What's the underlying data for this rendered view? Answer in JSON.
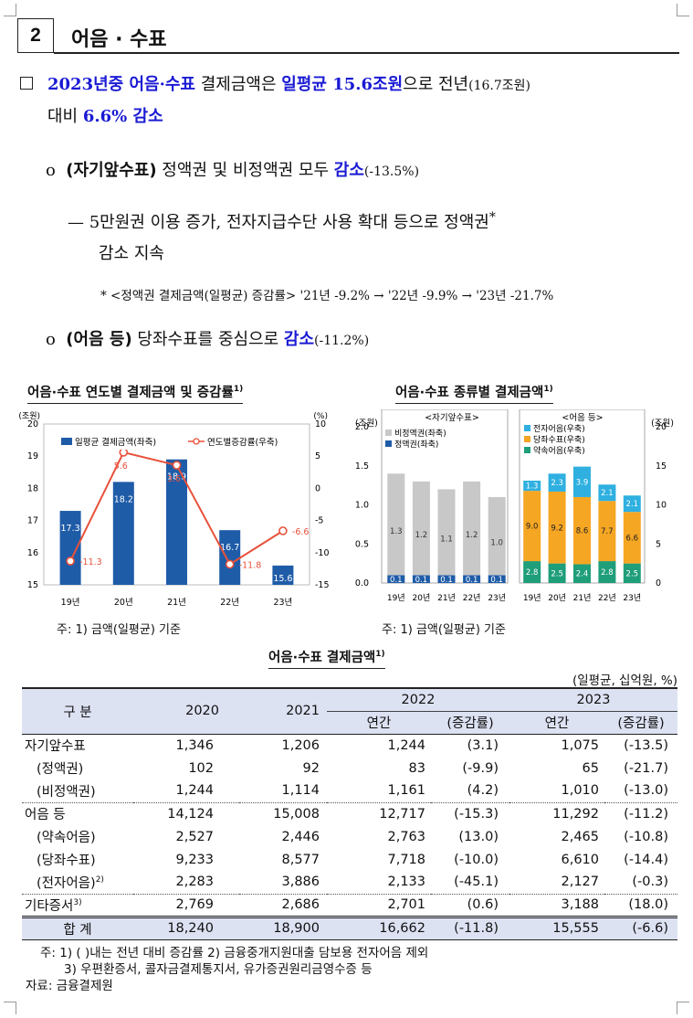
{
  "section": {
    "number": "2",
    "title": "어음 · 수표"
  },
  "para1": {
    "a": "2023년중 어음·수표",
    "b": " 결제금액은 ",
    "c": "일평균 15.6조원",
    "d": "으로 전년",
    "e": "(16.7조원)",
    "f": "대비 ",
    "g": "6.6% 감소"
  },
  "bullet1": {
    "marker": "o",
    "label": "(자기앞수표)",
    "text": " 정액권 및 비정액권 모두 ",
    "emph": "감소",
    "pct": "(-13.5%)"
  },
  "dash1": {
    "marker": "—",
    "line1": "5만원권 이용 증가, 전자지급수단 사용 확대 등으로 정액권",
    "star": "*",
    "line2": "감소 지속"
  },
  "footnote_star": {
    "text": "* <정액권 결제금액(일평균) 증감률> '21년 -9.2% → '22년 -9.9% → '23년 -21.7%"
  },
  "bullet2": {
    "marker": "o",
    "label": "(어음 등)",
    "text": " 당좌수표를 중심으로 ",
    "emph": "감소",
    "pct": "(-11.2%)"
  },
  "chart1": {
    "title": "어음·수표 연도별 결제금액 및 증감률",
    "sup": "1)",
    "note": "주: 1) 금액(일평균) 기준"
  },
  "chart2": {
    "title": "어음·수표 종류별 결제금액",
    "sup": "1)",
    "note": "주: 1) 금액(일평균) 기준"
  },
  "chart_data": [
    {
      "type": "bar",
      "categories": [
        "19년",
        "20년",
        "21년",
        "22년",
        "23년"
      ],
      "series": [
        {
          "name": "일평균 결제금액(좌축)",
          "values": [
            17.3,
            18.2,
            18.9,
            16.7,
            15.6
          ],
          "color": "#1f5ca8"
        },
        {
          "name": "연도별증감률(우축)",
          "type": "line",
          "values": [
            -11.3,
            5.6,
            3.6,
            -11.8,
            -6.6
          ],
          "color": "#e8503a"
        }
      ],
      "ylabel_left": "(조원)",
      "ylabel_right": "(%)",
      "ylim_left": [
        15,
        20
      ],
      "ylim_right": [
        -15,
        10
      ],
      "yticks_left": [
        "15",
        "16",
        "17",
        "18",
        "19",
        "20"
      ],
      "yticks_right": [
        "-15",
        "-10",
        "-5",
        "0",
        "5",
        "10"
      ],
      "legend": "top"
    },
    {
      "type": "bar",
      "subtitle": "<자기앞수표>",
      "categories": [
        "19년",
        "20년",
        "21년",
        "22년",
        "23년"
      ],
      "series": [
        {
          "name": "정액권(좌축)",
          "values": [
            0.1,
            0.1,
            0.1,
            0.1,
            0.1
          ],
          "color": "#1f5ca8"
        },
        {
          "name": "비정액권(좌축)",
          "values": [
            1.3,
            1.2,
            1.1,
            1.2,
            1.0
          ],
          "color": "#c8c8c8"
        }
      ],
      "ylabel": "(조원)",
      "ylim": [
        0,
        2.0
      ],
      "yticks": [
        "0.0",
        "0.5",
        "1.0",
        "1.5",
        "2.0"
      ],
      "stacked": true
    },
    {
      "type": "bar",
      "subtitle": "<어음 등>",
      "categories": [
        "19년",
        "20년",
        "21년",
        "22년",
        "23년"
      ],
      "series": [
        {
          "name": "약속어음(우축)",
          "values": [
            2.8,
            2.5,
            2.4,
            2.8,
            2.5
          ],
          "color": "#1f9e7a"
        },
        {
          "name": "당좌수표(우축)",
          "values": [
            9.0,
            9.2,
            8.6,
            7.7,
            6.6
          ],
          "color": "#f5a623"
        },
        {
          "name": "전자어음(우축)",
          "values": [
            1.3,
            2.3,
            3.9,
            2.1,
            2.1
          ],
          "color": "#2fb0e0"
        }
      ],
      "ylabel": "(조원)",
      "ylim": [
        0,
        20
      ],
      "yticks": [
        "0",
        "5",
        "10",
        "15",
        "20"
      ],
      "stacked": true
    },
    {
      "type": "table",
      "title": "어음·수표 결제금액",
      "title_sup": "1)",
      "unit": "(일평균, 십억원, %)",
      "header": {
        "col0": "구 분",
        "y2020": "2020",
        "y2021": "2021",
        "y2022": "2022",
        "y2023": "2023",
        "amt": "연간",
        "chg": "(증감률)"
      },
      "rows": [
        {
          "label": "자기앞수표",
          "v2020": "1,346",
          "v2021": "1,206",
          "v2022": "1,244",
          "c2022": "(3.1)",
          "v2023": "1,075",
          "c2023": "(-13.5)"
        },
        {
          "label": "(정액권)",
          "v2020": "102",
          "v2021": "92",
          "v2022": "83",
          "c2022": "(-9.9)",
          "v2023": "65",
          "c2023": "(-21.7)"
        },
        {
          "label": "(비정액권)",
          "v2020": "1,244",
          "v2021": "1,114",
          "v2022": "1,161",
          "c2022": "(4.2)",
          "v2023": "1,010",
          "c2023": "(-13.0)"
        },
        {
          "label": "어음 등",
          "v2020": "14,124",
          "v2021": "15,008",
          "v2022": "12,717",
          "c2022": "(-15.3)",
          "v2023": "11,292",
          "c2023": "(-11.2)"
        },
        {
          "label": "(약속어음)",
          "v2020": "2,527",
          "v2021": "2,446",
          "v2022": "2,763",
          "c2022": "(13.0)",
          "v2023": "2,465",
          "c2023": "(-10.8)"
        },
        {
          "label": "(당좌수표)",
          "v2020": "9,233",
          "v2021": "8,577",
          "v2022": "7,718",
          "c2022": "(-10.0)",
          "v2023": "6,610",
          "c2023": "(-14.4)"
        },
        {
          "label": "(전자어음)",
          "sup": "2)",
          "v2020": "2,283",
          "v2021": "3,886",
          "v2022": "2,133",
          "c2022": "(-45.1)",
          "v2023": "2,127",
          "c2023": "(-0.3)"
        },
        {
          "label": "기타증서",
          "sup": "3)",
          "v2020": "2,769",
          "v2021": "2,686",
          "v2022": "2,701",
          "c2022": "(0.6)",
          "v2023": "3,188",
          "c2023": "(18.0)"
        }
      ],
      "total": {
        "label": "합 계",
        "v2020": "18,240",
        "v2021": "18,900",
        "v2022": "16,662",
        "c2022": "(-11.8)",
        "v2023": "15,555",
        "c2023": "(-6.6)"
      }
    }
  ],
  "table_notes": {
    "line1": "주: 1) (   )내는 전년 대비 증감률 2) 금융중개지원대출 담보용 전자어음 제외",
    "line2": "3) 우편환증서, 콜자금결제통지서, 유가증권원리금영수증 등",
    "source": "자료: 금융결제원"
  }
}
